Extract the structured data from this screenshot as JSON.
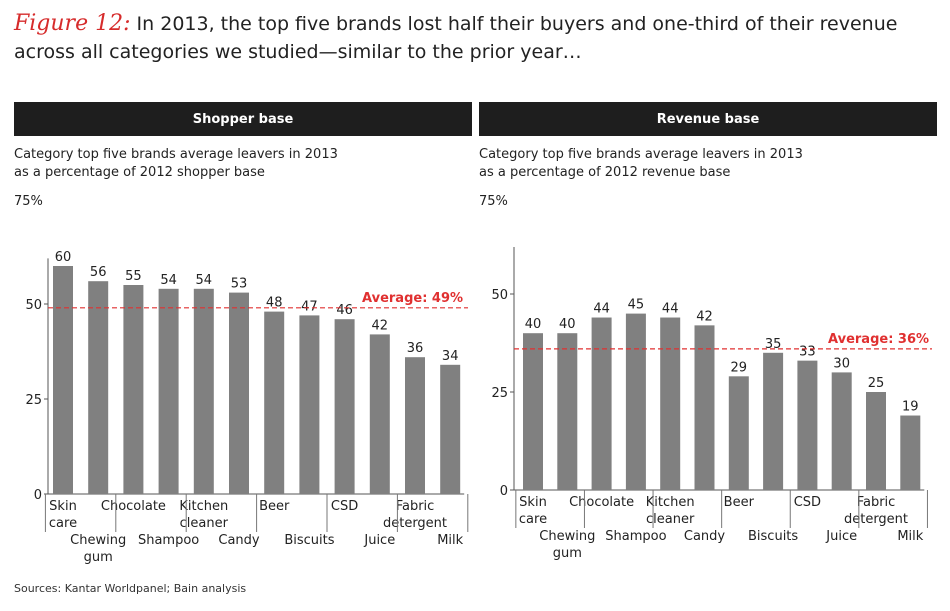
{
  "figure": {
    "label": "Figure 12:",
    "title": "In 2013, the top five brands lost half their buyers and one-third of their revenue across all categories we studied—similar to the prior year…"
  },
  "source": "Sources: Kantar Worldpanel; Bain analysis",
  "colors": {
    "bar": "#808080",
    "average_line": "#e03030",
    "header_bg": "#1e1e1e",
    "accent": "#d62b2b"
  },
  "chart_data": [
    {
      "type": "bar",
      "title": "Shopper base",
      "subtitle": "Category top five brands average leavers in 2013 as a percentage of 2012 shopper base",
      "subtitle_lines": [
        "Category top five brands average leavers in 2013",
        "as a percentage of 2012 shopper base"
      ],
      "ymax_label": "75%",
      "ylim": [
        0,
        75
      ],
      "yticks": [
        0,
        25,
        50
      ],
      "categories": [
        "Skin care",
        "Chewing gum",
        "Chocolate",
        "Shampoo",
        "Kitchen cleaner",
        "Candy",
        "Beer",
        "Biscuits",
        "CSD",
        "Juice",
        "Fabric detergent",
        "Milk"
      ],
      "values": [
        60,
        56,
        55,
        54,
        54,
        53,
        48,
        47,
        46,
        42,
        36,
        34
      ],
      "average": {
        "label": "Average: 49%",
        "value": 49
      }
    },
    {
      "type": "bar",
      "title": "Revenue base",
      "subtitle": "Category top five brands average leavers in 2013 as a percentage of 2012 revenue base",
      "subtitle_lines": [
        "Category top five brands average leavers in 2013",
        "as a percentage of 2012 revenue base"
      ],
      "ymax_label": "75%",
      "ylim": [
        0,
        75
      ],
      "yticks": [
        0,
        25,
        50
      ],
      "categories": [
        "Skin care",
        "Chewing gum",
        "Chocolate",
        "Shampoo",
        "Kitchen cleaner",
        "Candy",
        "Beer",
        "Biscuits",
        "CSD",
        "Juice",
        "Fabric detergent",
        "Milk"
      ],
      "values": [
        40,
        40,
        44,
        45,
        44,
        42,
        29,
        35,
        33,
        30,
        25,
        19
      ],
      "average": {
        "label": "Average: 36%",
        "value": 36
      }
    }
  ]
}
